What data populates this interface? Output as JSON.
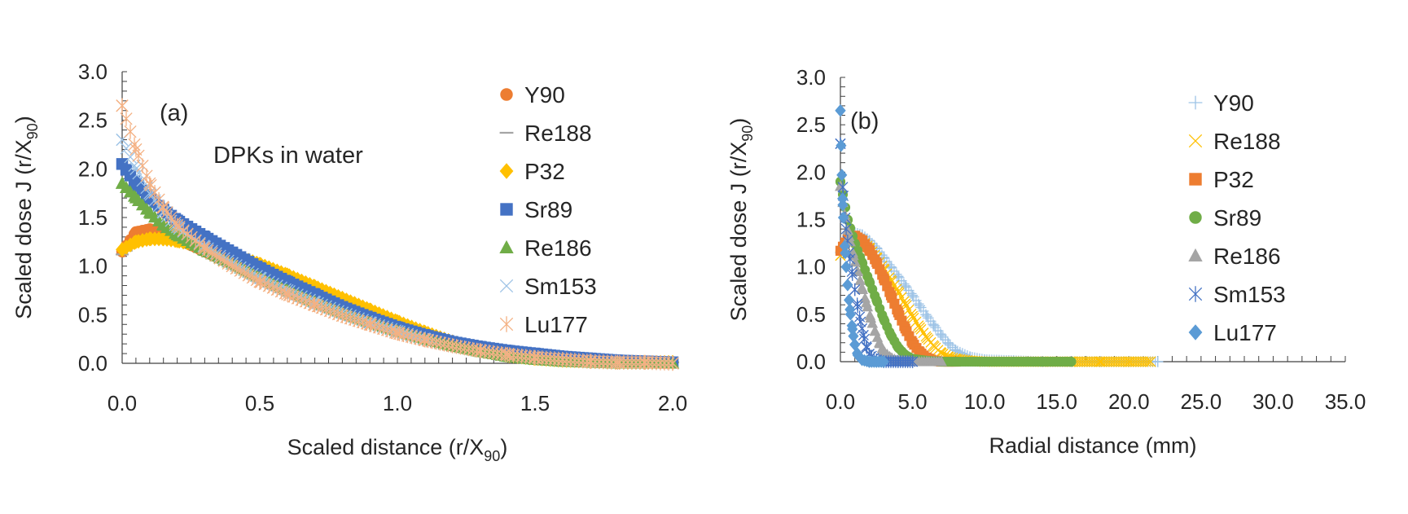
{
  "chart_data": [
    {
      "type": "scatter",
      "panel_label": "(a)",
      "annotation": "DPKs in water",
      "xlabel": "Scaled distance (r/X",
      "xlabel_sub": "90",
      "xlabel_end": ")",
      "ylabel": "Scaled dose J (r/X",
      "ylabel_sub": "90",
      "ylabel_end": ")",
      "xlim": [
        0,
        2.0
      ],
      "ylim": [
        0,
        3.0
      ],
      "xticks": [
        "0.0",
        "0.5",
        "1.0",
        "1.5",
        "2.0"
      ],
      "yticks": [
        "0.0",
        "0.5",
        "1.0",
        "1.5",
        "2.0",
        "2.5",
        "3.0"
      ],
      "grid": false,
      "legend_position": "right",
      "series": [
        {
          "name": "Y90",
          "marker": "circle",
          "color": "#ED7D31",
          "x": [
            0.0,
            0.05,
            0.1,
            0.15,
            0.2,
            0.3,
            0.4,
            0.5,
            0.6,
            0.7,
            0.8,
            0.9,
            1.0,
            1.1,
            1.2,
            1.3,
            1.4,
            1.5,
            1.6,
            1.7,
            1.8,
            1.9,
            2.0
          ],
          "y": [
            1.15,
            1.35,
            1.38,
            1.35,
            1.28,
            1.15,
            1.02,
            0.88,
            0.76,
            0.64,
            0.54,
            0.44,
            0.35,
            0.27,
            0.2,
            0.14,
            0.09,
            0.06,
            0.04,
            0.03,
            0.02,
            0.01,
            0.01
          ]
        },
        {
          "name": "Re188",
          "marker": "dash",
          "color": "#A5A5A5",
          "x": [
            0.0,
            0.05,
            0.1,
            0.15,
            0.2,
            0.3,
            0.4,
            0.5,
            0.6,
            0.7,
            0.8,
            0.9,
            1.0,
            1.1,
            1.2,
            1.3,
            1.4,
            1.5,
            1.6,
            1.7,
            1.8,
            1.9,
            2.0
          ],
          "y": [
            1.12,
            1.25,
            1.3,
            1.28,
            1.24,
            1.14,
            1.02,
            0.9,
            0.78,
            0.66,
            0.56,
            0.46,
            0.37,
            0.29,
            0.22,
            0.16,
            0.11,
            0.07,
            0.05,
            0.03,
            0.02,
            0.01,
            0.01
          ]
        },
        {
          "name": "P32",
          "marker": "diamond",
          "color": "#FFC000",
          "x": [
            0.0,
            0.05,
            0.1,
            0.15,
            0.2,
            0.3,
            0.4,
            0.5,
            0.6,
            0.7,
            0.8,
            0.9,
            1.0,
            1.1,
            1.2,
            1.3,
            1.4,
            1.5,
            1.6,
            1.7,
            1.8,
            1.9,
            2.0
          ],
          "y": [
            1.17,
            1.25,
            1.28,
            1.28,
            1.26,
            1.2,
            1.12,
            1.02,
            0.91,
            0.79,
            0.67,
            0.55,
            0.43,
            0.32,
            0.22,
            0.14,
            0.08,
            0.05,
            0.03,
            0.02,
            0.01,
            0.01,
            0.01
          ]
        },
        {
          "name": "Sr89",
          "marker": "square",
          "color": "#4472C4",
          "x": [
            0.0,
            0.05,
            0.1,
            0.15,
            0.2,
            0.3,
            0.4,
            0.5,
            0.6,
            0.7,
            0.8,
            0.9,
            1.0,
            1.1,
            1.2,
            1.3,
            1.4,
            1.5,
            1.6,
            1.7,
            1.8,
            1.9,
            2.0
          ],
          "y": [
            2.05,
            1.85,
            1.7,
            1.58,
            1.47,
            1.3,
            1.14,
            0.98,
            0.84,
            0.71,
            0.58,
            0.47,
            0.37,
            0.29,
            0.22,
            0.17,
            0.13,
            0.1,
            0.07,
            0.05,
            0.03,
            0.02,
            0.01
          ]
        },
        {
          "name": "Re186",
          "marker": "triangle",
          "color": "#70AD47",
          "x": [
            0.0,
            0.05,
            0.1,
            0.15,
            0.2,
            0.3,
            0.4,
            0.5,
            0.6,
            0.7,
            0.8,
            0.9,
            1.0,
            1.1,
            1.2,
            1.3,
            1.4,
            1.5,
            1.6,
            1.7,
            1.8,
            1.9,
            2.0
          ],
          "y": [
            1.85,
            1.7,
            1.55,
            1.42,
            1.32,
            1.16,
            1.02,
            0.88,
            0.75,
            0.63,
            0.52,
            0.42,
            0.33,
            0.25,
            0.18,
            0.12,
            0.07,
            0.04,
            0.02,
            0.01,
            0.0,
            0.0,
            0.0
          ]
        },
        {
          "name": "Sm153",
          "marker": "x",
          "color": "#9DC3E6",
          "x": [
            0.0,
            0.05,
            0.1,
            0.15,
            0.2,
            0.3,
            0.4,
            0.5,
            0.6,
            0.7,
            0.8,
            0.9,
            1.0,
            1.1,
            1.2,
            1.3,
            1.4,
            1.5,
            1.6,
            1.7,
            1.8,
            1.9,
            2.0
          ],
          "y": [
            2.3,
            2.0,
            1.75,
            1.55,
            1.4,
            1.2,
            1.03,
            0.88,
            0.75,
            0.63,
            0.52,
            0.42,
            0.33,
            0.25,
            0.18,
            0.13,
            0.09,
            0.06,
            0.04,
            0.02,
            0.01,
            0.01,
            0.0
          ]
        },
        {
          "name": "Lu177",
          "marker": "asterisk",
          "color": "#F4B183",
          "x": [
            0.0,
            0.05,
            0.1,
            0.15,
            0.2,
            0.3,
            0.4,
            0.5,
            0.6,
            0.7,
            0.8,
            0.9,
            1.0,
            1.1,
            1.2,
            1.3,
            1.4,
            1.5,
            1.6,
            1.7,
            1.8,
            1.9,
            2.0
          ],
          "y": [
            2.65,
            2.2,
            1.85,
            1.6,
            1.42,
            1.18,
            1.0,
            0.84,
            0.71,
            0.6,
            0.49,
            0.4,
            0.31,
            0.24,
            0.18,
            0.13,
            0.09,
            0.06,
            0.04,
            0.02,
            0.01,
            0.01,
            0.0
          ]
        }
      ]
    },
    {
      "type": "scatter",
      "panel_label": "(b)",
      "xlabel": "Radial distance (mm)",
      "ylabel": "Scaled dose J (r/X",
      "ylabel_sub": "90",
      "ylabel_end": ")",
      "xlim": [
        0,
        35.0
      ],
      "ylim": [
        0,
        3.0
      ],
      "xticks": [
        "0.0",
        "5.0",
        "10.0",
        "15.0",
        "20.0",
        "25.0",
        "30.0",
        "35.0"
      ],
      "yticks": [
        "0.0",
        "0.5",
        "1.0",
        "1.5",
        "2.0",
        "2.5",
        "3.0"
      ],
      "grid": false,
      "legend_position": "right",
      "series": [
        {
          "name": "Y90",
          "marker": "plus",
          "color": "#9DC3E6",
          "x": [
            0.0,
            0.5,
            1.0,
            1.5,
            2.0,
            2.5,
            3.0,
            3.5,
            4.0,
            4.5,
            5.0,
            5.5,
            6.0,
            6.5,
            7.0,
            7.5,
            8.0,
            9.0,
            10.0,
            12.0,
            14.0,
            16.0,
            18.0,
            20.0,
            22.0
          ],
          "y": [
            1.15,
            1.3,
            1.36,
            1.34,
            1.28,
            1.2,
            1.1,
            1.0,
            0.9,
            0.8,
            0.7,
            0.59,
            0.48,
            0.38,
            0.28,
            0.19,
            0.12,
            0.05,
            0.02,
            0.01,
            0.0,
            0.0,
            0.0,
            0.0,
            0.0
          ]
        },
        {
          "name": "Re188",
          "marker": "x",
          "color": "#FFC000",
          "x": [
            0.0,
            0.5,
            1.0,
            1.5,
            2.0,
            2.5,
            3.0,
            3.5,
            4.0,
            4.5,
            5.0,
            5.5,
            6.0,
            6.5,
            7.0,
            7.5,
            8.0,
            9.0,
            10.0,
            12.0,
            14.0,
            16.0,
            18.0,
            20.0,
            21.5
          ],
          "y": [
            1.12,
            1.28,
            1.32,
            1.28,
            1.2,
            1.1,
            0.98,
            0.86,
            0.74,
            0.61,
            0.48,
            0.36,
            0.25,
            0.16,
            0.09,
            0.05,
            0.03,
            0.01,
            0.0,
            0.0,
            0.0,
            0.0,
            0.0,
            0.0,
            0.0
          ]
        },
        {
          "name": "P32",
          "marker": "square",
          "color": "#ED7D31",
          "x": [
            0.0,
            0.5,
            1.0,
            1.5,
            2.0,
            2.5,
            3.0,
            3.5,
            4.0,
            4.5,
            5.0,
            5.5,
            6.0,
            6.5,
            7.0,
            7.5,
            8.0
          ],
          "y": [
            1.17,
            1.3,
            1.33,
            1.28,
            1.18,
            1.05,
            0.88,
            0.7,
            0.52,
            0.35,
            0.2,
            0.1,
            0.04,
            0.01,
            0.0,
            0.0,
            0.0
          ]
        },
        {
          "name": "Sr89",
          "marker": "circle",
          "color": "#70AD47",
          "x": [
            0.0,
            0.5,
            1.0,
            1.5,
            2.0,
            2.5,
            3.0,
            3.5,
            4.0,
            4.5,
            5.0,
            6.0,
            7.0,
            8.0,
            10.0,
            12.0,
            14.0,
            16.0
          ],
          "y": [
            1.9,
            1.5,
            1.25,
            1.05,
            0.85,
            0.65,
            0.45,
            0.28,
            0.15,
            0.07,
            0.03,
            0.01,
            0.0,
            0.0,
            0.0,
            0.0,
            0.0,
            0.0
          ]
        },
        {
          "name": "Re186",
          "marker": "triangle",
          "color": "#A5A5A5",
          "x": [
            0.0,
            0.3,
            0.6,
            0.9,
            1.2,
            1.5,
            1.8,
            2.1,
            2.4,
            2.7,
            3.0,
            3.5,
            4.0,
            5.0,
            6.0,
            7.0
          ],
          "y": [
            1.85,
            1.55,
            1.32,
            1.12,
            0.95,
            0.78,
            0.62,
            0.46,
            0.32,
            0.2,
            0.11,
            0.04,
            0.01,
            0.0,
            0.0,
            0.0
          ]
        },
        {
          "name": "Sm153",
          "marker": "asterisk",
          "color": "#4472C4",
          "x": [
            0.0,
            0.2,
            0.4,
            0.6,
            0.8,
            1.0,
            1.2,
            1.4,
            1.6,
            1.8,
            2.0,
            2.5,
            3.0,
            4.0,
            5.0
          ],
          "y": [
            2.3,
            1.75,
            1.4,
            1.15,
            0.95,
            0.76,
            0.58,
            0.42,
            0.28,
            0.16,
            0.08,
            0.02,
            0.0,
            0.0,
            0.0
          ]
        },
        {
          "name": "Lu177",
          "marker": "diamond",
          "color": "#5B9BD5",
          "x": [
            0.0,
            0.05,
            0.1,
            0.15,
            0.2,
            0.3,
            0.4,
            0.5,
            0.6,
            0.7,
            0.8,
            0.9,
            1.0,
            1.2,
            1.5,
            2.0,
            2.5,
            3.0
          ],
          "y": [
            2.65,
            2.28,
            1.97,
            1.72,
            1.52,
            1.22,
            1.0,
            0.81,
            0.65,
            0.5,
            0.38,
            0.27,
            0.18,
            0.07,
            0.02,
            0.0,
            0.0,
            0.0
          ]
        }
      ]
    }
  ]
}
